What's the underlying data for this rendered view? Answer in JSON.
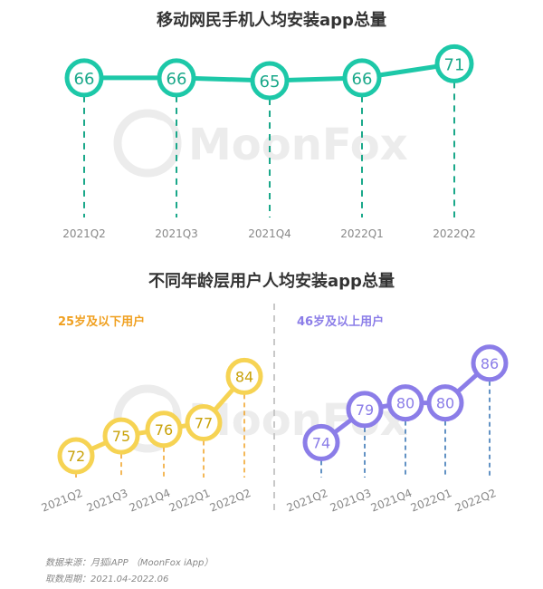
{
  "colors": {
    "teal": "#1dc8a8",
    "teal_dash": "#1aa88a",
    "yellow": "#f6d353",
    "yellow_dash": "#f0a020",
    "purple": "#8b7de8",
    "purple_dash": "#2f6fb0",
    "axis_text": "#888888",
    "watermark": "#ececec"
  },
  "watermark": "MoonFox",
  "chart_data": [
    {
      "type": "line",
      "title": "移动网民手机人均安装app总量",
      "categories": [
        "2021Q2",
        "2021Q3",
        "2021Q4",
        "2022Q1",
        "2022Q2"
      ],
      "series": [
        {
          "values": [
            66,
            66,
            65,
            66,
            71
          ]
        }
      ],
      "data_labels": true,
      "grid": false
    },
    {
      "type": "line",
      "title": "不同年龄层用户人均安装app总量",
      "categories": [
        "2021Q2",
        "2021Q3",
        "2021Q4",
        "2022Q1",
        "2022Q2"
      ],
      "series": [
        {
          "name": "25岁及以下用户",
          "values": [
            72,
            75,
            76,
            77,
            84
          ]
        },
        {
          "name": "46岁及以上用户",
          "values": [
            74,
            79,
            80,
            80,
            86
          ]
        }
      ],
      "data_labels": true,
      "grid": false
    }
  ],
  "footer": {
    "source": "数据来源：月狐iAPP （MoonFox iApp）",
    "period": "取数周期：2021.04-2022.06"
  }
}
